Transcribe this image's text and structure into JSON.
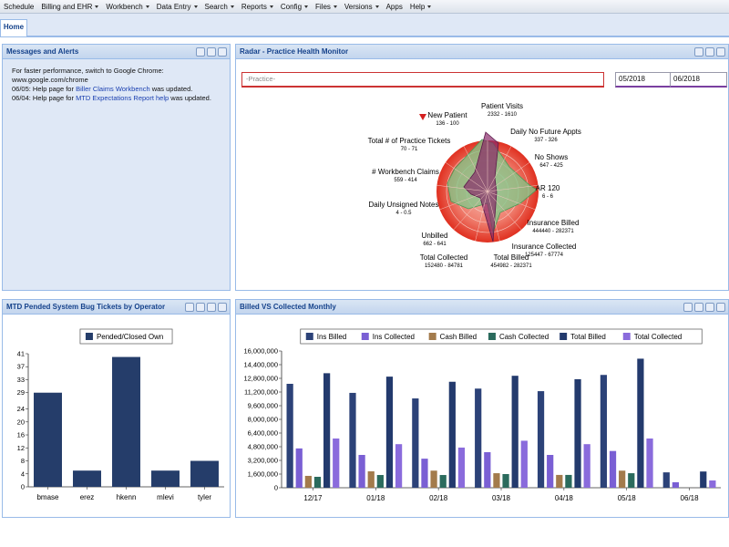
{
  "menu": [
    {
      "label": "Schedule",
      "dropdown": false
    },
    {
      "label": "Billing and EHR",
      "dropdown": true
    },
    {
      "label": "Workbench",
      "dropdown": true
    },
    {
      "label": "Data Entry",
      "dropdown": true
    },
    {
      "label": "Search",
      "dropdown": true
    },
    {
      "label": "Reports",
      "dropdown": true
    },
    {
      "label": "Config",
      "dropdown": true
    },
    {
      "label": "Files",
      "dropdown": true
    },
    {
      "label": "Versions",
      "dropdown": true
    },
    {
      "label": "Apps",
      "dropdown": false
    },
    {
      "label": "Help",
      "dropdown": true
    }
  ],
  "tab": "Home",
  "messages": {
    "title": "Messages and Alerts",
    "intro": "For faster performance, switch to Google Chrome: www.google.com/chrome",
    "lines": [
      {
        "prefix": "06/05: Help page for ",
        "link": "Biller Claims Workbench",
        "suffix": " was updated."
      },
      {
        "prefix": "06/04: Help page for ",
        "link": "MTD Expectations Report help",
        "suffix": " was updated."
      }
    ]
  },
  "radar": {
    "title": "Radar - Practice Health Monitor",
    "practice_placeholder": "-Practice-",
    "date_from": "05/2018",
    "date_to": "06/2018",
    "axes": [
      {
        "label": "New Patient",
        "range": "136 - 100"
      },
      {
        "label": "Patient Visits",
        "range": "2332 - 1610"
      },
      {
        "label": "Daily No Future Appts",
        "range": "337 - 326"
      },
      {
        "label": "No Shows",
        "range": "647 - 425"
      },
      {
        "label": "AR 120",
        "range": "6 - 6"
      },
      {
        "label": "Insurance Billed",
        "range": "444440 - 282371"
      },
      {
        "label": "Insurance Collected",
        "range": "125447 - 67774"
      },
      {
        "label": "Total Billed",
        "range": "454982 - 282371"
      },
      {
        "label": "Total Collected",
        "range": "152480 - 84781"
      },
      {
        "label": "Unbilled",
        "range": "662 - 641"
      },
      {
        "label": "Daily Unsigned Notes",
        "range": "4 - 0.5"
      },
      {
        "label": "# Workbench Claims",
        "range": "559 - 414"
      },
      {
        "label": "Total # of Practice Tickets",
        "range": "70 - 71"
      }
    ]
  },
  "chart_data": [
    {
      "type": "bar",
      "title": "MTD Pended System Bug Tickets by Operator",
      "categories": [
        "bmase",
        "erez",
        "hkenn",
        "mlevi",
        "tyler"
      ],
      "series": [
        {
          "name": "Pended/Closed Own",
          "color": "#253d6a",
          "values": [
            29,
            5,
            40,
            5,
            8
          ]
        }
      ],
      "ylim": [
        0,
        41
      ],
      "yticks": [
        0,
        4,
        8,
        12,
        16,
        20,
        24,
        29,
        33,
        37,
        41
      ],
      "grid": false,
      "legend": "top"
    },
    {
      "type": "bar",
      "title": "Billed VS Collected Monthly",
      "categories": [
        "12/17",
        "01/18",
        "02/18",
        "03/18",
        "04/18",
        "05/18",
        "06/18"
      ],
      "series": [
        {
          "name": "Ins Billed",
          "color": "#2c4278",
          "values": [
            12160000,
            11100000,
            10450000,
            11600000,
            11300000,
            13200000,
            1800000
          ]
        },
        {
          "name": "Ins Collected",
          "color": "#7a5fd4",
          "values": [
            4600000,
            3840000,
            3400000,
            4160000,
            3840000,
            4300000,
            640000
          ]
        },
        {
          "name": "Cash Billed",
          "color": "#a37b4c",
          "values": [
            1390000,
            1920000,
            2000000,
            1700000,
            1500000,
            2000000,
            null
          ]
        },
        {
          "name": "Cash Collected",
          "color": "#2b6b5d",
          "values": [
            1280000,
            1490000,
            1490000,
            1600000,
            1500000,
            1700000,
            null
          ]
        },
        {
          "name": "Total Billed",
          "color": "#233a6d",
          "values": [
            13400000,
            13000000,
            12400000,
            13100000,
            12700000,
            15100000,
            1900000
          ]
        },
        {
          "name": "Total Collected",
          "color": "#8a6bdc",
          "values": [
            5760000,
            5100000,
            4700000,
            5500000,
            5100000,
            5760000,
            850000
          ]
        }
      ],
      "ylim": [
        0,
        16000000
      ],
      "yticks": [
        {
          "value": 0,
          "label": "0"
        },
        {
          "value": 1600000,
          "label": "1,600,000"
        },
        {
          "value": 3200000,
          "label": "3,200,000"
        },
        {
          "value": 4800000,
          "label": "4,800,000"
        },
        {
          "value": 6400000,
          "label": "6,400,000"
        },
        {
          "value": 8000000,
          "label": "8,000,000"
        },
        {
          "value": 9600000,
          "label": "9,600,000"
        },
        {
          "value": 11200000,
          "label": "11,200,000"
        },
        {
          "value": 12800000,
          "label": "12,800,000"
        },
        {
          "value": 14400000,
          "label": "14,400,000"
        },
        {
          "value": 16000000,
          "label": "16,000,000"
        }
      ],
      "grid": false,
      "legend": "top"
    }
  ]
}
